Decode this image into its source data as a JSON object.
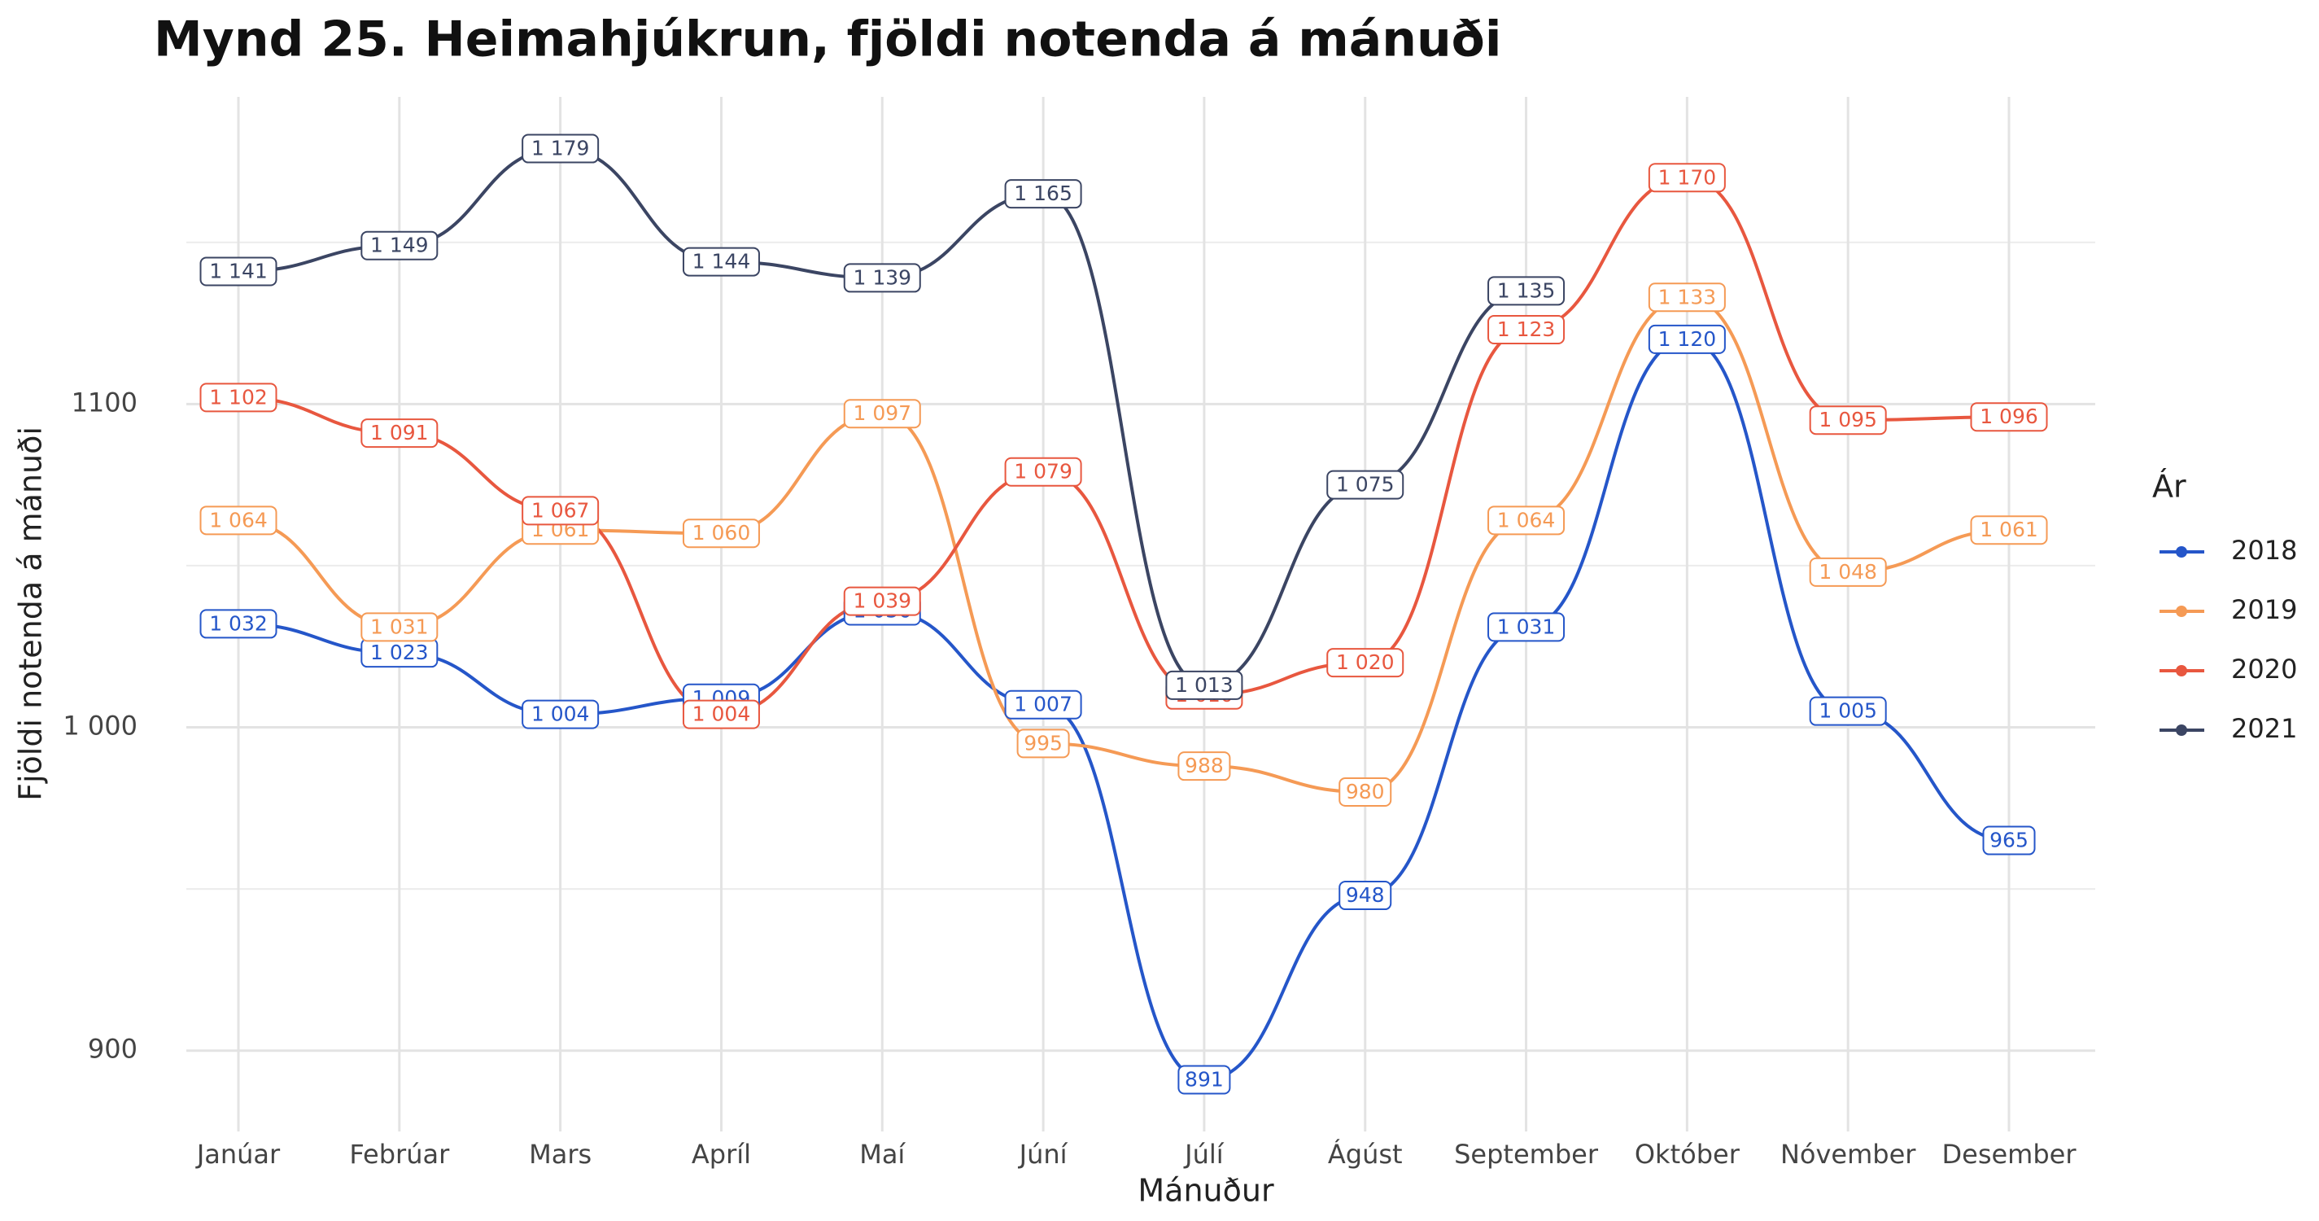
{
  "chart_data": {
    "type": "line",
    "title": "Mynd 25. Heimahjúkrun, fjöldi notenda á mánuði",
    "x_label": "Mánuður",
    "y_label": "Fjöldi notenda á mánuði",
    "legend_title": "Ár",
    "categories": [
      "Janúar",
      "Febrúar",
      "Mars",
      "Apríl",
      "Maí",
      "Júní",
      "Júlí",
      "Ágúst",
      "September",
      "Október",
      "Nóvember",
      "Desember"
    ],
    "series": [
      {
        "name": "2018",
        "color": "#2556c9",
        "values": [
          1032,
          1023,
          1004,
          1009,
          1036,
          1007,
          891,
          948,
          1031,
          1120,
          1005,
          965
        ],
        "value_labels": [
          "1 032",
          "1 023",
          "1 004",
          "1 009",
          "1 036",
          "1 007",
          "891",
          "948",
          "1 031",
          "1 120",
          "1 005",
          "965"
        ]
      },
      {
        "name": "2019",
        "color": "#f59a55",
        "values": [
          1064,
          1031,
          1061,
          1060,
          1097,
          995,
          988,
          980,
          1064,
          1133,
          1048,
          1061
        ],
        "value_labels": [
          "1 064",
          "1 031",
          "1 061",
          "1 060",
          "1 097",
          "995",
          "988",
          "980",
          "1 064",
          "1 133",
          "1 048",
          "1 061"
        ]
      },
      {
        "name": "2020",
        "color": "#e8573f",
        "values": [
          1102,
          1091,
          1067,
          1004,
          1039,
          1079,
          1010,
          1020,
          1123,
          1170,
          1095,
          1096
        ],
        "value_labels": [
          "1 102",
          "1 091",
          "1 067",
          "1 004",
          "1 039",
          "1 079",
          "1 010",
          "1 020",
          "1 123",
          "1 170",
          "1 095",
          "1 096"
        ]
      },
      {
        "name": "2021",
        "color": "#3b4563",
        "values": [
          1141,
          1149,
          1179,
          1144,
          1139,
          1165,
          1013,
          1075,
          1135,
          null,
          null,
          null
        ],
        "value_labels": [
          "1 141",
          "1 149",
          "1 179",
          "1 144",
          "1 139",
          "1 165",
          "1 013",
          "1 075",
          "1 135",
          null,
          null,
          null
        ]
      }
    ],
    "ylim": [
      875,
      1195
    ],
    "yticks": [
      900,
      {
        "value": 1000,
        "label": "1 000"
      },
      1100
    ],
    "yticks_minor": [
      950,
      1050,
      1150
    ],
    "grid": true,
    "legend": "right"
  }
}
